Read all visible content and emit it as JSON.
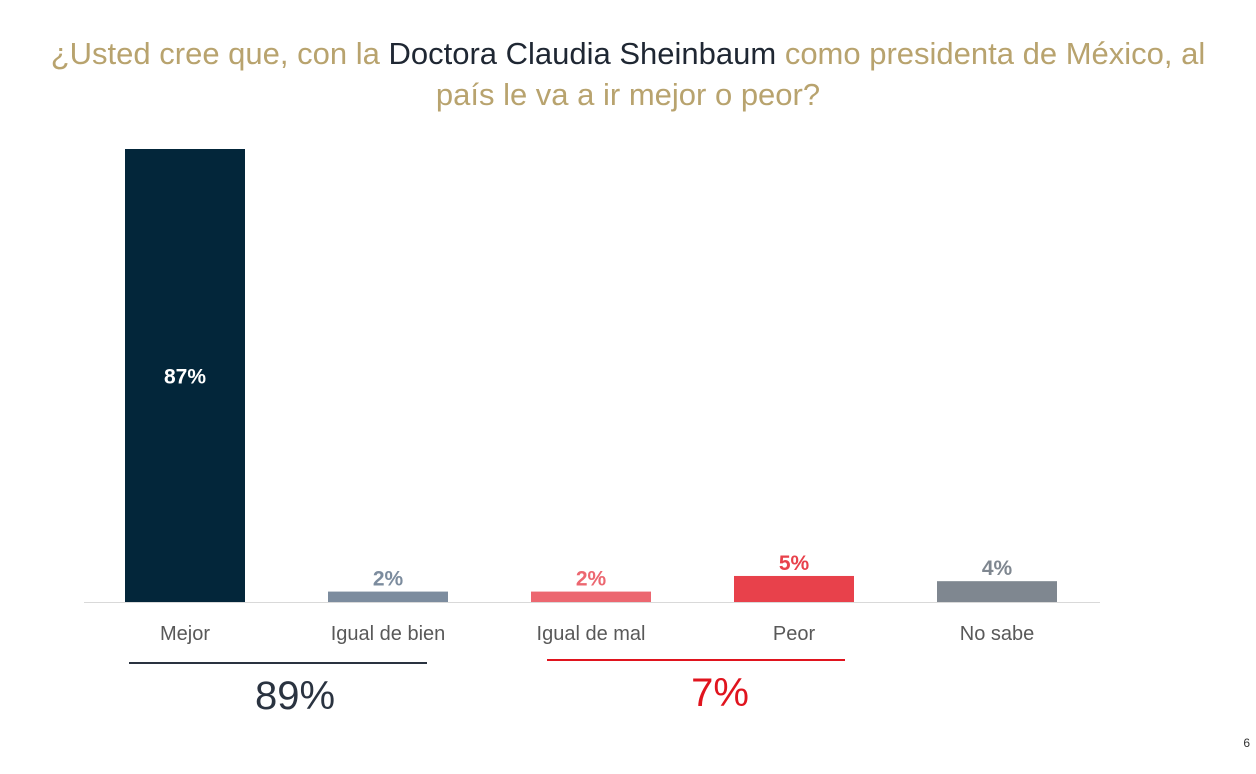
{
  "title": {
    "part1": "¿Usted cree que, con la ",
    "part2": "Doctora Claudia Sheinbaum",
    "part3": " como presidenta de México, al país le va a ir mejor o peor",
    "part4": "?"
  },
  "chart_data": {
    "type": "bar",
    "categories": [
      "Mejor",
      "Igual de bien",
      "Igual de mal",
      "Peor",
      "No sabe"
    ],
    "values": [
      87,
      2,
      2,
      5,
      4
    ],
    "value_labels": [
      "87%",
      "2%",
      "2%",
      "5%",
      "4%"
    ],
    "colors": [
      "#03263A",
      "#7C8C9E",
      "#EC6770",
      "#E8414B",
      "#7F8790"
    ],
    "label_colors": [
      "#FFFFFF",
      "#7C8C9E",
      "#EC6770",
      "#E8414B",
      "#7F8790"
    ],
    "ylim": [
      0,
      87
    ]
  },
  "groups": [
    {
      "label": "89%",
      "color": "#2A3340"
    },
    {
      "label": "7%",
      "color": "#E0141E"
    }
  ],
  "page_number": "6"
}
